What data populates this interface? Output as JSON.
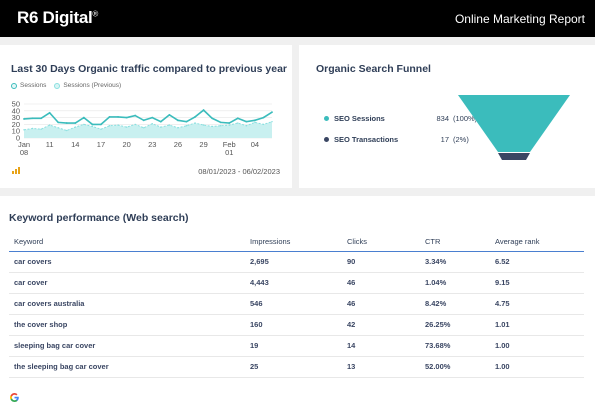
{
  "header": {
    "logo_text": "R6 Digital",
    "logo_mark": "®",
    "report_title": "Online Marketing Report"
  },
  "traffic": {
    "title": "Last 30 Days Organic traffic compared to previous year",
    "legend": {
      "current": "Sessions",
      "previous": "Sessions (Previous)"
    },
    "date_range": "08/01/2023 - 06/02/2023",
    "colors": {
      "current": "#3bbcbc",
      "previous": "#8ae0e0",
      "area": "#c9f0f0"
    }
  },
  "funnel": {
    "title": "Organic Search Funnel",
    "rows": [
      {
        "label": "SEO Sessions",
        "value": "834",
        "pct": "(100%)",
        "color": "#3bbcbc"
      },
      {
        "label": "SEO Transactions",
        "value": "17",
        "pct": "(2%)",
        "color": "#3a4663"
      }
    ]
  },
  "keywords": {
    "title": "Keyword performance (Web search)",
    "columns": [
      "Keyword",
      "Impressions",
      "Clicks",
      "CTR",
      "Average rank"
    ],
    "rows": [
      [
        "car covers",
        "2,695",
        "90",
        "3.34%",
        "6.52"
      ],
      [
        "car cover",
        "4,443",
        "46",
        "1.04%",
        "9.15"
      ],
      [
        "car covers australia",
        "546",
        "46",
        "8.42%",
        "4.75"
      ],
      [
        "the cover shop",
        "160",
        "42",
        "26.25%",
        "1.01"
      ],
      [
        "sleeping bag car cover",
        "19",
        "14",
        "73.68%",
        "1.00"
      ],
      [
        "the sleeping bag car cover",
        "25",
        "13",
        "52.00%",
        "1.00"
      ]
    ],
    "footer_icon": "google-icon"
  },
  "chart_data": {
    "type": "line",
    "title": "Last 30 Days Organic traffic compared to previous year",
    "ylim": [
      0,
      50
    ],
    "yticks": [
      0,
      10,
      20,
      30,
      40,
      50
    ],
    "x_tick_labels": [
      {
        "index": 0,
        "line1": "Jan",
        "line2": "08"
      },
      {
        "index": 3,
        "line1": "11",
        "line2": ""
      },
      {
        "index": 6,
        "line1": "14",
        "line2": ""
      },
      {
        "index": 9,
        "line1": "17",
        "line2": ""
      },
      {
        "index": 12,
        "line1": "20",
        "line2": ""
      },
      {
        "index": 15,
        "line1": "23",
        "line2": ""
      },
      {
        "index": 18,
        "line1": "26",
        "line2": ""
      },
      {
        "index": 21,
        "line1": "29",
        "line2": ""
      },
      {
        "index": 24,
        "line1": "Feb",
        "line2": "01"
      },
      {
        "index": 27,
        "line1": "04",
        "line2": ""
      }
    ],
    "series": [
      {
        "name": "Sessions",
        "values": [
          28,
          29,
          29,
          37,
          23,
          22,
          22,
          30,
          20,
          20,
          31,
          31,
          30,
          33,
          26,
          30,
          24,
          34,
          26,
          24,
          31,
          41,
          29,
          23,
          22,
          29,
          24,
          26,
          30,
          38
        ]
      },
      {
        "name": "Sessions (Previous)",
        "values": [
          12,
          14,
          13,
          19,
          15,
          11,
          16,
          20,
          17,
          13,
          18,
          19,
          16,
          20,
          15,
          21,
          16,
          19,
          15,
          18,
          22,
          19,
          17,
          18,
          19,
          22,
          18,
          23,
          20,
          24
        ]
      }
    ]
  }
}
